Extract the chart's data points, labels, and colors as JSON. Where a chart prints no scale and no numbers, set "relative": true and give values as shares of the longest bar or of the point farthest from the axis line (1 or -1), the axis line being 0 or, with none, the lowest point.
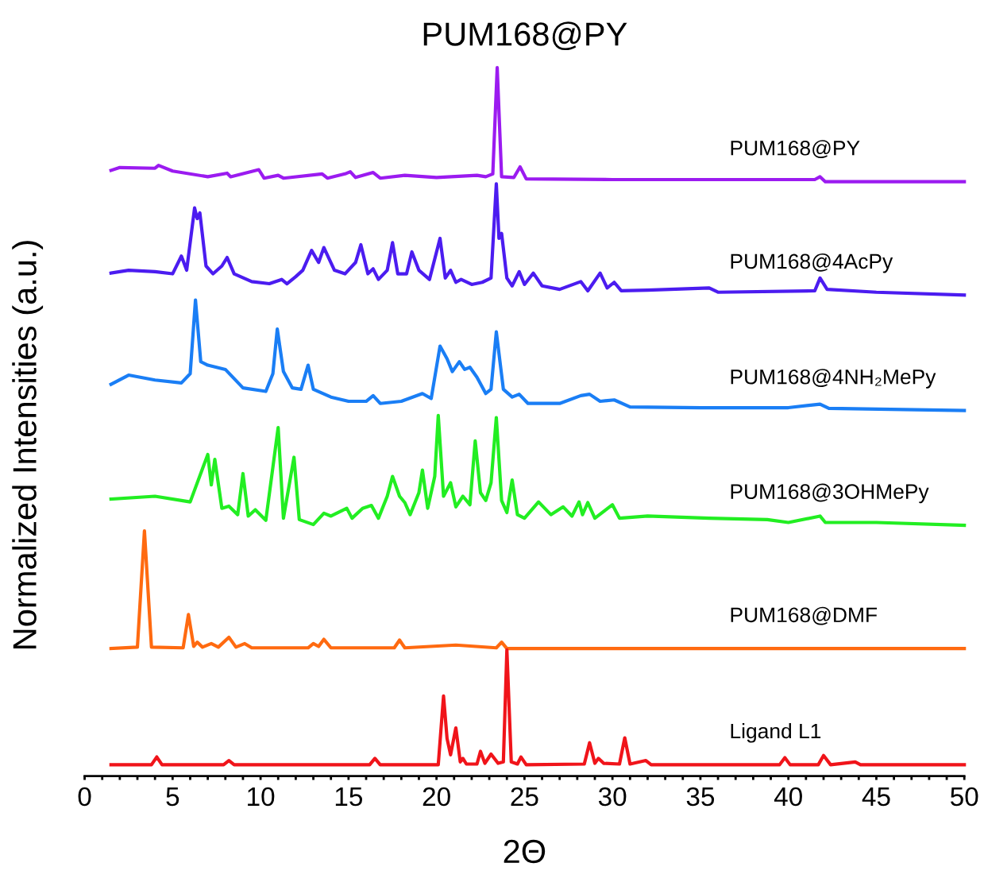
{
  "chart_data": {
    "type": "line",
    "title": "PUM168@PY",
    "xlabel": "2Θ",
    "ylabel": "Normalized Intensities (a.u.)",
    "relative": true,
    "tick_labels": "x",
    "xlim": [
      0,
      50
    ],
    "xticks": [
      0,
      {
        "value": 1,
        "label": null
      },
      {
        "value": 2,
        "label": null
      },
      {
        "value": 3,
        "label": null
      },
      {
        "value": 4,
        "label": null
      },
      5,
      {
        "value": 6,
        "label": null
      },
      {
        "value": 7,
        "label": null
      },
      {
        "value": 8,
        "label": null
      },
      {
        "value": 9,
        "label": null
      },
      10,
      {
        "value": 11,
        "label": null
      },
      {
        "value": 12,
        "label": null
      },
      {
        "value": 13,
        "label": null
      },
      {
        "value": 14,
        "label": null
      },
      15,
      {
        "value": 16,
        "label": null
      },
      {
        "value": 17,
        "label": null
      },
      {
        "value": 18,
        "label": null
      },
      {
        "value": 19,
        "label": null
      },
      20,
      {
        "value": 21,
        "label": null
      },
      {
        "value": 22,
        "label": null
      },
      {
        "value": 23,
        "label": null
      },
      {
        "value": 24,
        "label": null
      },
      25,
      {
        "value": 26,
        "label": null
      },
      {
        "value": 27,
        "label": null
      },
      {
        "value": 28,
        "label": null
      },
      {
        "value": 29,
        "label": null
      },
      30,
      {
        "value": 31,
        "label": null
      },
      {
        "value": 32,
        "label": null
      },
      {
        "value": 33,
        "label": null
      },
      {
        "value": 34,
        "label": null
      },
      35,
      {
        "value": 36,
        "label": null
      },
      {
        "value": 37,
        "label": null
      },
      {
        "value": 38,
        "label": null
      },
      {
        "value": 39,
        "label": null
      },
      40,
      {
        "value": 41,
        "label": null
      },
      {
        "value": 42,
        "label": null
      },
      {
        "value": 43,
        "label": null
      },
      {
        "value": 44,
        "label": null
      },
      45,
      {
        "value": 46,
        "label": null
      },
      {
        "value": 47,
        "label": null
      },
      {
        "value": 48,
        "label": null
      },
      {
        "value": 49,
        "label": null
      },
      50
    ],
    "series": [
      {
        "name": "PUM168@PY",
        "color": "#9b1bf0",
        "x": [
          1.5,
          2,
          4,
          4.2,
          5,
          7,
          8.1,
          8.3,
          9.9,
          10.2,
          11,
          11.3,
          13.5,
          13.8,
          14.8,
          15.1,
          15.4,
          16.4,
          16.8,
          18.2,
          20,
          22.3,
          22.8,
          23.2,
          23.45,
          23.7,
          24.4,
          24.75,
          25.1,
          30,
          41.5,
          41.8,
          42.1,
          50
        ],
        "values": [
          0.855,
          0.859,
          0.858,
          0.862,
          0.854,
          0.846,
          0.851,
          0.846,
          0.856,
          0.844,
          0.848,
          0.844,
          0.85,
          0.844,
          0.85,
          0.853,
          0.845,
          0.852,
          0.844,
          0.848,
          0.845,
          0.848,
          0.846,
          0.85,
          1.0,
          0.846,
          0.845,
          0.86,
          0.843,
          0.842,
          0.842,
          0.846,
          0.839,
          0.839
        ]
      },
      {
        "name": "PUM168@4AcPy",
        "color": "#4b1cf0",
        "x": [
          1.5,
          2.5,
          4,
          5.0,
          5.5,
          5.8,
          6.25,
          6.4,
          6.55,
          6.9,
          7.3,
          7.8,
          8.1,
          8.5,
          9.5,
          10.5,
          11.2,
          11.5,
          12.0,
          12.4,
          12.9,
          13.3,
          13.6,
          14.2,
          14.8,
          15.4,
          15.7,
          16.1,
          16.4,
          16.7,
          17.2,
          17.5,
          17.8,
          18.3,
          18.6,
          19.0,
          19.6,
          20.2,
          20.5,
          20.8,
          21.1,
          21.4,
          22,
          22.6,
          23.1,
          23.4,
          23.55,
          23.7,
          24.0,
          24.3,
          24.7,
          25.0,
          25.5,
          26,
          27,
          28.2,
          28.6,
          29.3,
          29.7,
          30.1,
          30.5,
          32,
          35.5,
          36,
          41.5,
          41.8,
          42.2,
          45,
          50
        ],
        "values": [
          0.71,
          0.714,
          0.712,
          0.709,
          0.734,
          0.714,
          0.802,
          0.787,
          0.795,
          0.72,
          0.709,
          0.72,
          0.732,
          0.709,
          0.698,
          0.695,
          0.701,
          0.695,
          0.705,
          0.714,
          0.742,
          0.725,
          0.746,
          0.714,
          0.709,
          0.725,
          0.75,
          0.709,
          0.716,
          0.701,
          0.714,
          0.753,
          0.709,
          0.709,
          0.74,
          0.714,
          0.701,
          0.759,
          0.703,
          0.714,
          0.697,
          0.701,
          0.694,
          0.697,
          0.703,
          0.836,
          0.759,
          0.766,
          0.703,
          0.692,
          0.712,
          0.694,
          0.71,
          0.692,
          0.687,
          0.698,
          0.685,
          0.71,
          0.689,
          0.697,
          0.685,
          0.686,
          0.689,
          0.683,
          0.685,
          0.703,
          0.687,
          0.683,
          0.679
        ]
      },
      {
        "name": "PUM168@4NH₂MePy",
        "color": "#1a7ef5",
        "x": [
          1.5,
          2.5,
          4,
          5.5,
          6.0,
          6.3,
          6.6,
          7.0,
          8,
          9,
          10.3,
          10.7,
          10.95,
          11.3,
          11.8,
          12.3,
          12.7,
          13.0,
          14,
          15,
          16.0,
          16.4,
          16.8,
          18,
          19.2,
          19.7,
          20.2,
          20.6,
          20.9,
          21.3,
          21.6,
          21.9,
          22.3,
          22.8,
          23.1,
          23.4,
          23.8,
          24.3,
          24.7,
          25.2,
          27,
          28.2,
          28.7,
          29.3,
          30.1,
          31,
          35,
          40,
          41.8,
          42.3,
          50
        ],
        "values": [
          0.553,
          0.566,
          0.559,
          0.555,
          0.568,
          0.672,
          0.585,
          0.58,
          0.574,
          0.548,
          0.543,
          0.568,
          0.631,
          0.571,
          0.548,
          0.546,
          0.58,
          0.546,
          0.535,
          0.529,
          0.529,
          0.537,
          0.526,
          0.529,
          0.54,
          0.533,
          0.607,
          0.589,
          0.571,
          0.585,
          0.574,
          0.577,
          0.563,
          0.54,
          0.546,
          0.627,
          0.546,
          0.535,
          0.539,
          0.526,
          0.526,
          0.537,
          0.539,
          0.529,
          0.531,
          0.521,
          0.52,
          0.52,
          0.525,
          0.519,
          0.516
        ]
      },
      {
        "name": "PUM168@3OHMePy",
        "color": "#22ee22",
        "x": [
          1.5,
          4,
          6,
          7.0,
          7.2,
          7.4,
          7.8,
          8.2,
          8.7,
          9.0,
          9.3,
          9.7,
          10.3,
          11.0,
          11.3,
          11.9,
          12.2,
          13.0,
          13.6,
          14.0,
          14.9,
          15.2,
          15.8,
          16.3,
          16.7,
          17.2,
          17.5,
          17.9,
          18.2,
          18.5,
          19.0,
          19.2,
          19.5,
          19.9,
          20.1,
          20.4,
          20.8,
          21.1,
          21.5,
          21.9,
          22.2,
          22.5,
          22.8,
          23.1,
          23.4,
          23.7,
          24.0,
          24.3,
          24.6,
          25.0,
          25.8,
          26.5,
          27.2,
          27.7,
          28.1,
          28.3,
          28.6,
          29.0,
          30.0,
          30.4,
          32.0,
          35.5,
          38.8,
          40.0,
          41.8,
          42.1,
          45,
          50
        ],
        "values": [
          0.391,
          0.395,
          0.387,
          0.454,
          0.411,
          0.447,
          0.378,
          0.381,
          0.369,
          0.427,
          0.367,
          0.376,
          0.361,
          0.492,
          0.364,
          0.45,
          0.362,
          0.355,
          0.371,
          0.367,
          0.378,
          0.364,
          0.378,
          0.382,
          0.364,
          0.395,
          0.423,
          0.395,
          0.386,
          0.369,
          0.4,
          0.432,
          0.378,
          0.423,
          0.509,
          0.395,
          0.414,
          0.38,
          0.395,
          0.383,
          0.473,
          0.4,
          0.389,
          0.414,
          0.506,
          0.389,
          0.372,
          0.418,
          0.369,
          0.364,
          0.387,
          0.369,
          0.38,
          0.367,
          0.387,
          0.369,
          0.386,
          0.364,
          0.383,
          0.364,
          0.367,
          0.364,
          0.362,
          0.358,
          0.367,
          0.358,
          0.358,
          0.354
        ]
      },
      {
        "name": "PUM168@DMF",
        "color": "#ff6a10",
        "x": [
          1.5,
          3.0,
          3.4,
          3.8,
          5.6,
          5.9,
          6.2,
          6.4,
          6.7,
          7.2,
          7.6,
          8.2,
          8.6,
          9.1,
          9.5,
          12.7,
          13.0,
          13.3,
          13.6,
          14.0,
          17.6,
          17.9,
          18.2,
          21.1,
          23.4,
          23.7,
          24.0,
          50
        ],
        "values": [
          0.18,
          0.182,
          0.346,
          0.182,
          0.181,
          0.228,
          0.183,
          0.189,
          0.182,
          0.187,
          0.182,
          0.196,
          0.182,
          0.187,
          0.181,
          0.181,
          0.187,
          0.183,
          0.193,
          0.181,
          0.181,
          0.192,
          0.181,
          0.185,
          0.181,
          0.189,
          0.18,
          0.18
        ]
      },
      {
        "name": "Ligand L1",
        "color": "#f0141a",
        "x": [
          1.5,
          3.8,
          4.1,
          4.4,
          7.9,
          8.2,
          8.5,
          16.2,
          16.5,
          16.8,
          20.1,
          20.4,
          20.6,
          20.8,
          21.1,
          21.35,
          21.5,
          21.7,
          22.3,
          22.5,
          22.75,
          23.1,
          23.5,
          23.8,
          24.0,
          24.25,
          24.6,
          24.8,
          25.1,
          28.4,
          28.7,
          29.0,
          29.2,
          29.5,
          30.4,
          30.7,
          31.0,
          31.9,
          32.2,
          39.5,
          39.8,
          40.1,
          41.7,
          42.0,
          42.4,
          43.8,
          44.1,
          50
        ],
        "values": [
          0.016,
          0.016,
          0.027,
          0.016,
          0.016,
          0.022,
          0.016,
          0.016,
          0.025,
          0.016,
          0.016,
          0.113,
          0.053,
          0.03,
          0.068,
          0.02,
          0.025,
          0.017,
          0.017,
          0.035,
          0.018,
          0.031,
          0.018,
          0.02,
          0.178,
          0.02,
          0.017,
          0.027,
          0.016,
          0.017,
          0.047,
          0.018,
          0.025,
          0.018,
          0.017,
          0.054,
          0.017,
          0.022,
          0.016,
          0.016,
          0.026,
          0.016,
          0.016,
          0.029,
          0.016,
          0.02,
          0.016,
          0.016
        ]
      }
    ]
  }
}
